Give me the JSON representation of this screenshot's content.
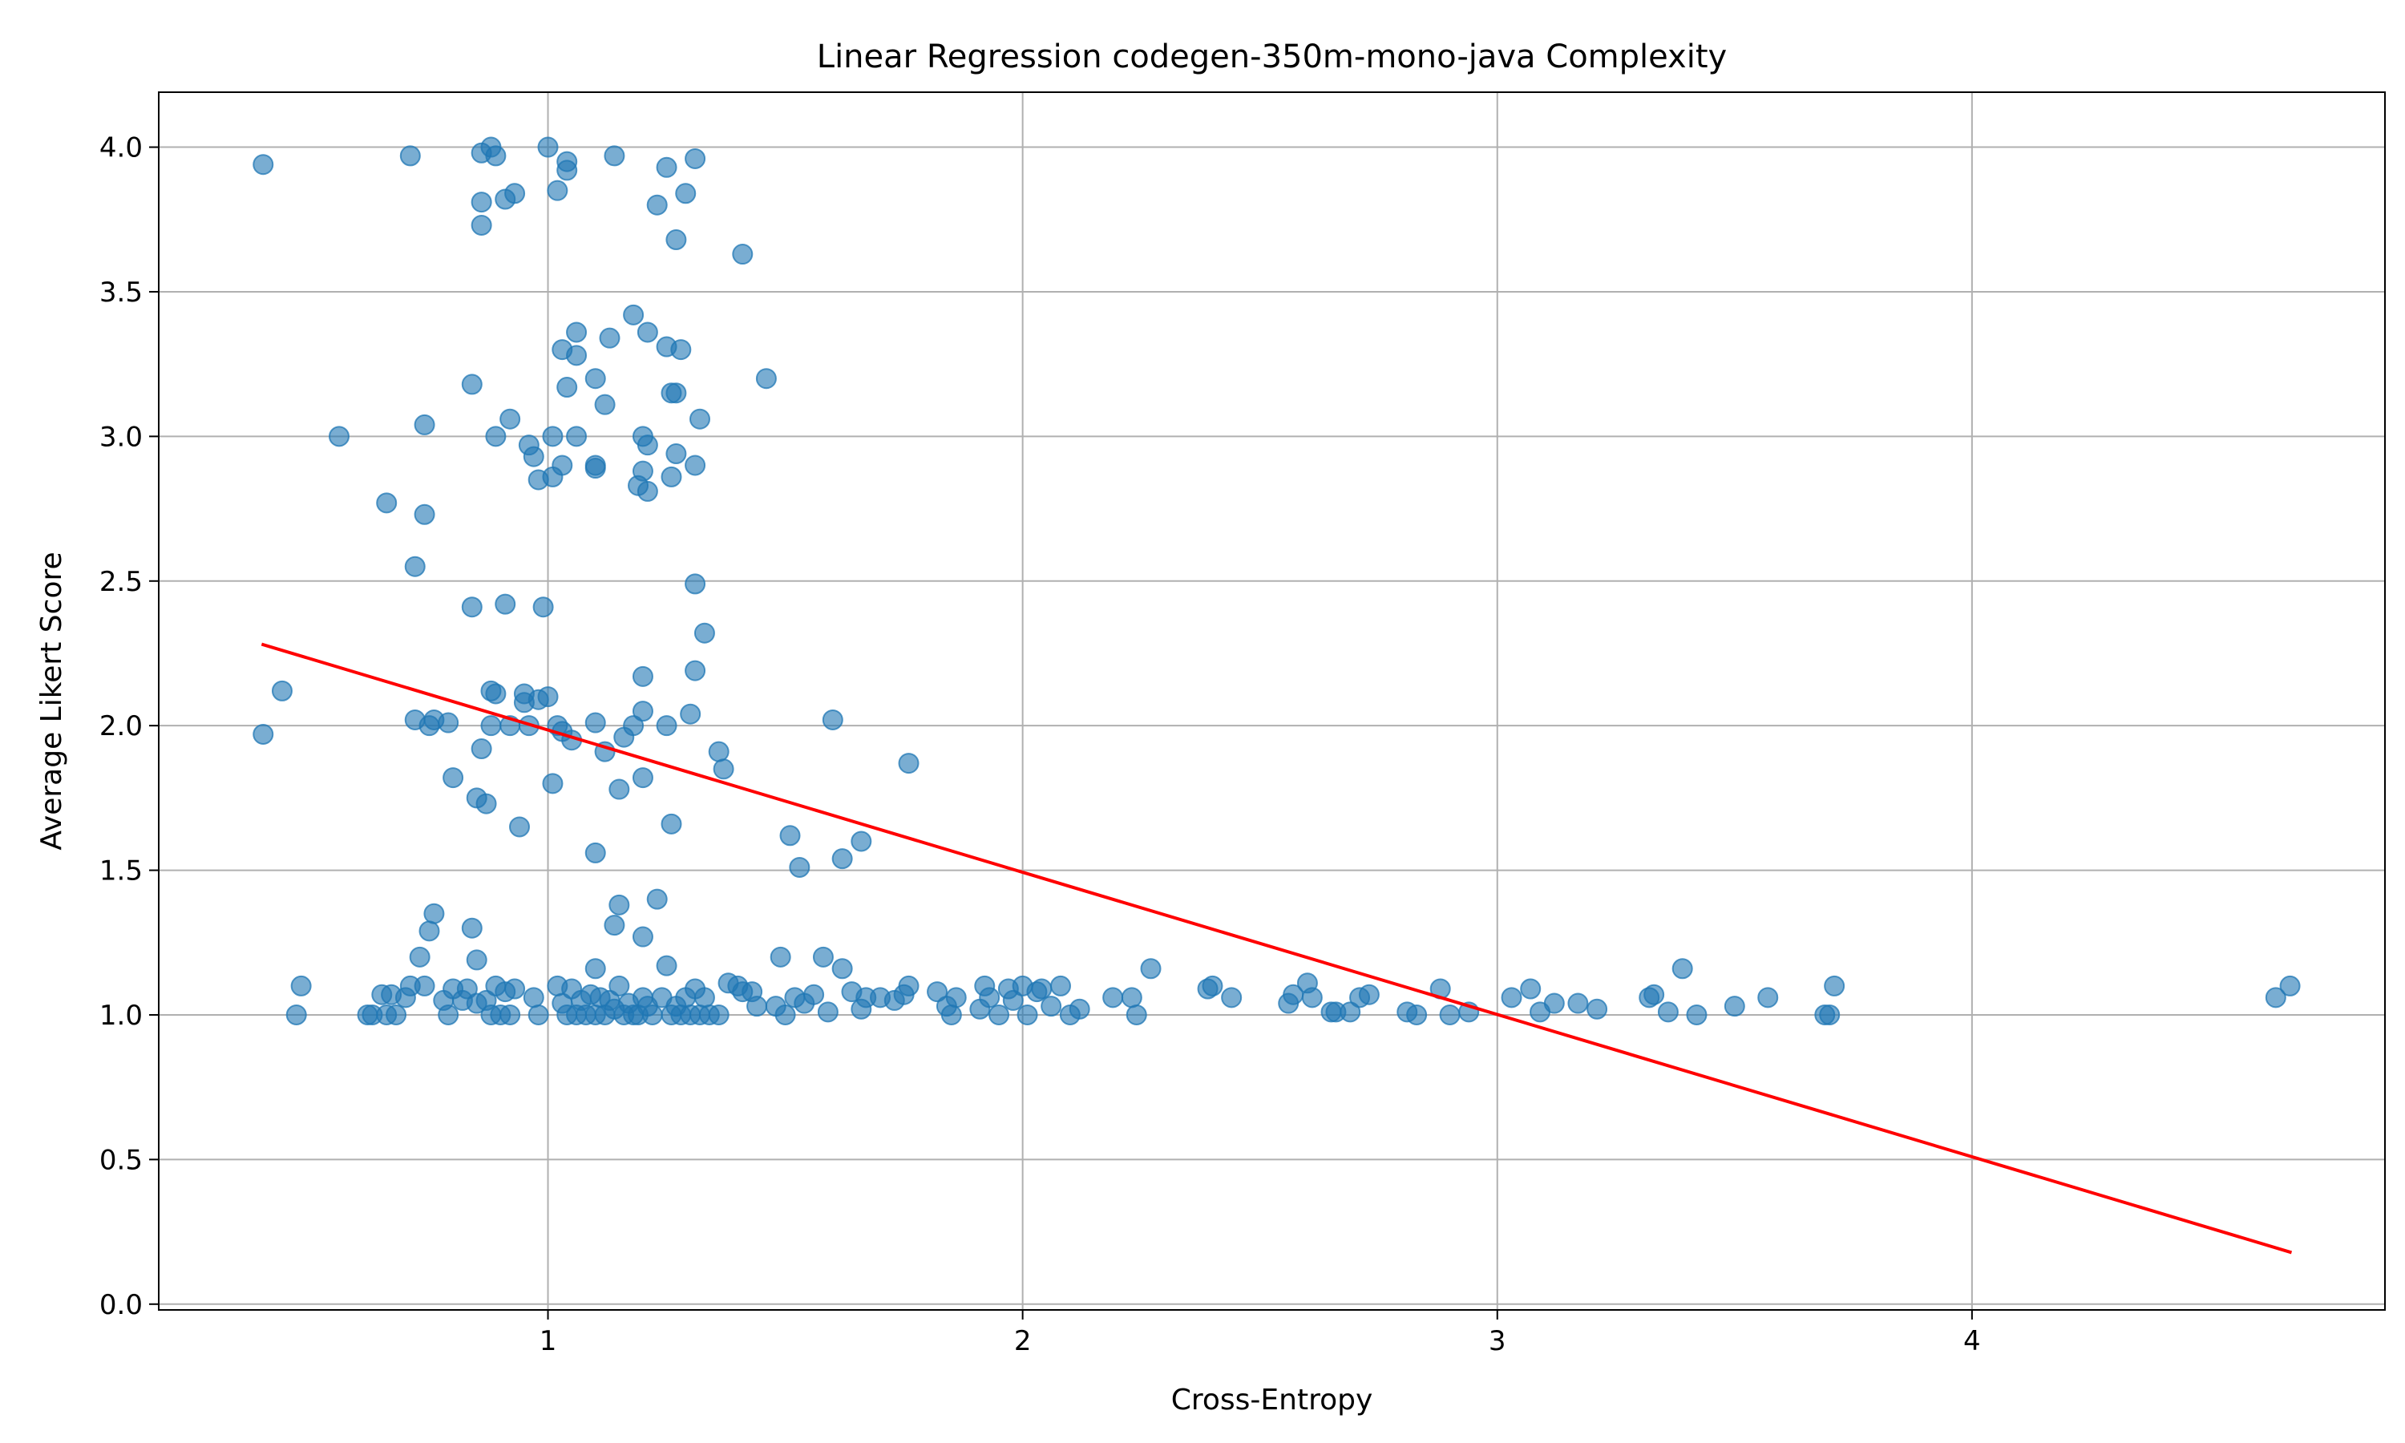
{
  "chart_data": {
    "type": "scatter",
    "title": "Linear Regression codegen-350m-mono-java Complexity",
    "xlabel": "Cross-Entropy",
    "ylabel": "Average Likert Score",
    "xlim": [
      0.18,
      4.87
    ],
    "ylim": [
      -0.02,
      4.19
    ],
    "xticks": [
      1,
      2,
      3,
      4
    ],
    "yticks": [
      0.0,
      0.5,
      1.0,
      1.5,
      2.0,
      2.5,
      3.0,
      3.5,
      4.0
    ],
    "grid": true,
    "colors": {
      "points": "#1f77b4",
      "regression": "#ff0000",
      "grid": "#b0b0b0"
    },
    "series": [
      {
        "marker": "circle",
        "x": [
          0.4,
          0.71,
          0.86,
          0.88,
          0.89,
          1.0,
          1.04,
          1.04,
          1.14,
          1.25,
          1.31,
          0.86,
          0.91,
          0.93,
          1.02,
          1.23,
          1.29,
          0.86,
          1.27,
          1.41,
          1.18,
          1.06,
          1.13,
          1.21,
          1.25,
          1.03,
          1.06,
          1.28,
          1.1,
          1.46,
          0.84,
          1.04,
          1.27,
          1.26,
          1.12,
          0.74,
          0.92,
          1.32,
          0.56,
          0.89,
          1.06,
          1.2,
          1.01,
          0.96,
          0.97,
          1.21,
          1.27,
          1.03,
          1.1,
          1.1,
          1.31,
          1.2,
          0.98,
          1.01,
          1.26,
          1.19,
          1.21,
          0.66,
          0.74,
          0.72,
          1.31,
          0.84,
          0.91,
          0.99,
          1.33,
          1.31,
          1.2,
          0.89,
          0.88,
          0.95,
          1.0,
          0.98,
          0.95,
          1.02,
          1.6,
          1.3,
          0.76,
          0.72,
          0.79,
          0.75,
          0.88,
          0.92,
          0.96,
          1.03,
          1.1,
          1.18,
          1.2,
          1.25,
          1.16,
          1.05,
          1.12,
          0.44,
          0.4,
          1.36,
          1.37,
          1.76,
          0.86,
          0.8,
          1.2,
          1.01,
          1.15,
          0.85,
          0.87,
          0.94,
          1.26,
          1.51,
          1.66,
          1.1,
          1.62,
          1.53,
          1.23,
          0.76,
          1.15,
          1.14,
          0.84,
          1.2,
          0.75,
          0.73,
          0.85,
          1.25,
          1.1,
          0.47,
          0.48,
          0.62,
          0.63,
          0.65,
          0.66,
          0.67,
          0.68,
          0.7,
          0.71,
          0.74,
          0.78,
          0.79,
          0.8,
          0.82,
          0.83,
          0.85,
          0.87,
          0.88,
          0.89,
          0.9,
          0.91,
          0.92,
          0.93,
          0.97,
          0.98,
          1.02,
          1.03,
          1.04,
          1.05,
          1.06,
          1.07,
          1.08,
          1.09,
          1.1,
          1.11,
          1.12,
          1.13,
          1.14,
          1.15,
          1.16,
          1.17,
          1.18,
          1.19,
          1.2,
          1.21,
          1.22,
          1.24,
          1.26,
          1.27,
          1.28,
          1.29,
          1.3,
          1.31,
          1.32,
          1.33,
          1.34,
          1.36,
          1.38,
          1.4,
          1.41,
          1.43,
          1.44,
          1.48,
          1.49,
          1.5,
          1.52,
          1.54,
          1.56,
          1.58,
          1.59,
          1.62,
          1.64,
          1.66,
          1.67,
          1.7,
          1.73,
          1.75,
          1.76,
          1.82,
          1.84,
          1.85,
          1.86,
          1.91,
          1.92,
          1.93,
          1.95,
          1.97,
          1.98,
          2.0,
          2.01,
          2.03,
          2.04,
          2.06,
          2.08,
          2.1,
          2.12,
          2.19,
          2.23,
          2.24,
          2.27,
          2.39,
          2.4,
          2.44,
          2.56,
          2.57,
          2.6,
          2.61,
          2.65,
          2.66,
          2.69,
          2.71,
          2.73,
          2.81,
          2.83,
          2.88,
          2.9,
          2.94,
          3.03,
          3.07,
          3.09,
          3.12,
          3.17,
          3.21,
          3.32,
          3.33,
          3.36,
          3.39,
          3.42,
          3.5,
          3.57,
          3.69,
          3.7,
          3.71,
          4.64,
          4.67
        ],
        "y": [
          3.94,
          3.97,
          3.98,
          4.0,
          3.97,
          4.0,
          3.95,
          3.92,
          3.97,
          3.93,
          3.96,
          3.81,
          3.82,
          3.84,
          3.85,
          3.8,
          3.84,
          3.73,
          3.68,
          3.63,
          3.42,
          3.36,
          3.34,
          3.36,
          3.31,
          3.3,
          3.28,
          3.3,
          3.2,
          3.2,
          3.18,
          3.17,
          3.15,
          3.15,
          3.11,
          3.04,
          3.06,
          3.06,
          3.0,
          3.0,
          3.0,
          3.0,
          3.0,
          2.97,
          2.93,
          2.97,
          2.94,
          2.9,
          2.89,
          2.9,
          2.9,
          2.88,
          2.85,
          2.86,
          2.86,
          2.83,
          2.81,
          2.77,
          2.73,
          2.55,
          2.49,
          2.41,
          2.42,
          2.41,
          2.32,
          2.19,
          2.17,
          2.11,
          2.12,
          2.11,
          2.1,
          2.09,
          2.08,
          2.0,
          2.02,
          2.04,
          2.02,
          2.02,
          2.01,
          2.0,
          2.0,
          2.0,
          2.0,
          1.98,
          2.01,
          2.0,
          2.05,
          2.0,
          1.96,
          1.95,
          1.91,
          2.12,
          1.97,
          1.91,
          1.85,
          1.87,
          1.92,
          1.82,
          1.82,
          1.8,
          1.78,
          1.75,
          1.73,
          1.65,
          1.66,
          1.62,
          1.6,
          1.56,
          1.54,
          1.51,
          1.4,
          1.35,
          1.38,
          1.31,
          1.3,
          1.27,
          1.29,
          1.2,
          1.19,
          1.17,
          1.16,
          1.0,
          1.1,
          1.0,
          1.0,
          1.07,
          1.0,
          1.07,
          1.0,
          1.06,
          1.1,
          1.1,
          1.05,
          1.0,
          1.09,
          1.05,
          1.09,
          1.04,
          1.05,
          1.0,
          1.1,
          1.0,
          1.08,
          1.0,
          1.09,
          1.06,
          1.0,
          1.1,
          1.04,
          1.0,
          1.09,
          1.0,
          1.05,
          1.0,
          1.07,
          1.0,
          1.06,
          1.0,
          1.05,
          1.02,
          1.1,
          1.0,
          1.04,
          1.0,
          1.0,
          1.06,
          1.03,
          1.0,
          1.06,
          1.0,
          1.03,
          1.0,
          1.06,
          1.0,
          1.09,
          1.0,
          1.06,
          1.0,
          1.0,
          1.11,
          1.1,
          1.08,
          1.08,
          1.03,
          1.03,
          1.2,
          1.0,
          1.06,
          1.04,
          1.07,
          1.2,
          1.01,
          1.16,
          1.08,
          1.02,
          1.06,
          1.06,
          1.05,
          1.07,
          1.1,
          1.08,
          1.03,
          1.0,
          1.06,
          1.02,
          1.1,
          1.06,
          1.0,
          1.09,
          1.05,
          1.1,
          1.0,
          1.08,
          1.09,
          1.03,
          1.1,
          1.0,
          1.02,
          1.06,
          1.06,
          1.0,
          1.16,
          1.09,
          1.1,
          1.06,
          1.04,
          1.07,
          1.11,
          1.06,
          1.01,
          1.01,
          1.01,
          1.06,
          1.07,
          1.01,
          1.0,
          1.09,
          1.0,
          1.01,
          1.06,
          1.09,
          1.01,
          1.04,
          1.04,
          1.02,
          1.06,
          1.07,
          1.01,
          1.16,
          1.0,
          1.03,
          1.06,
          1.0,
          1.0,
          1.1,
          1.06,
          1.1
        ]
      },
      {
        "marker": "line",
        "x": [
          0.4,
          4.67
        ],
        "y": [
          2.28,
          0.18
        ]
      }
    ]
  }
}
